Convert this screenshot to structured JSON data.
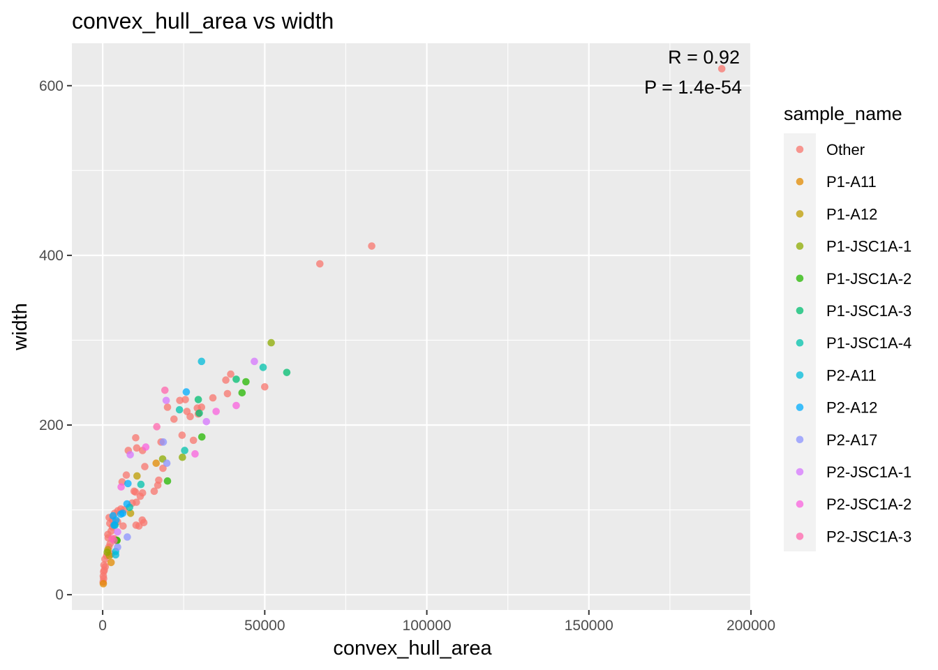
{
  "chart_data": {
    "type": "scatter",
    "title": "convex_hull_area vs width",
    "xlabel": "convex_hull_area",
    "ylabel": "width",
    "xlim": [
      -9500,
      200000
    ],
    "ylim": [
      -18,
      650
    ],
    "x_ticks": [
      0,
      50000,
      100000,
      150000,
      200000
    ],
    "x_tick_labels": [
      "0",
      "50000",
      "100000",
      "150000",
      "200000"
    ],
    "y_ticks": [
      0,
      200,
      400,
      600
    ],
    "y_tick_labels": [
      "0",
      "200",
      "400",
      "600"
    ],
    "grid": true,
    "legend": {
      "title": "sample_name",
      "position": "right"
    },
    "annotations": [
      "R = 0.92",
      "P = 1.4e-54"
    ],
    "series": [
      {
        "name": "Other",
        "color": "#F8766D",
        "points": [
          [
            191000,
            620
          ],
          [
            83000,
            411
          ],
          [
            67000,
            390
          ],
          [
            39500,
            260
          ],
          [
            38000,
            253
          ],
          [
            50000,
            245
          ],
          [
            38500,
            237
          ],
          [
            34000,
            232
          ],
          [
            25500,
            230
          ],
          [
            23800,
            229
          ],
          [
            20000,
            221
          ],
          [
            30500,
            221
          ],
          [
            29200,
            220
          ],
          [
            26000,
            216
          ],
          [
            29500,
            213
          ],
          [
            27000,
            210
          ],
          [
            22000,
            207
          ],
          [
            24500,
            188
          ],
          [
            10200,
            185
          ],
          [
            28000,
            182
          ],
          [
            18000,
            180
          ],
          [
            7900,
            170
          ],
          [
            12300,
            170
          ],
          [
            10500,
            173
          ],
          [
            13000,
            151
          ],
          [
            18600,
            149
          ],
          [
            7300,
            141
          ],
          [
            17300,
            135
          ],
          [
            17000,
            129
          ],
          [
            6000,
            133
          ],
          [
            12300,
            120
          ],
          [
            15900,
            122
          ],
          [
            9700,
            122
          ],
          [
            10100,
            121
          ],
          [
            11600,
            116
          ],
          [
            10400,
            109
          ],
          [
            9100,
            108
          ],
          [
            5600,
            101
          ],
          [
            6600,
            100
          ],
          [
            4700,
            99
          ],
          [
            3700,
            96
          ],
          [
            2000,
            91
          ],
          [
            3000,
            88
          ],
          [
            11200,
            81
          ],
          [
            12700,
            85
          ],
          [
            10300,
            82
          ],
          [
            12200,
            88
          ],
          [
            4600,
            86
          ],
          [
            6300,
            81
          ],
          [
            2200,
            84
          ],
          [
            3000,
            80
          ],
          [
            2600,
            75
          ],
          [
            1600,
            71
          ],
          [
            1700,
            67
          ],
          [
            3600,
            66
          ],
          [
            2300,
            60
          ],
          [
            1900,
            56
          ],
          [
            2600,
            48
          ],
          [
            1200,
            46
          ],
          [
            700,
            42
          ],
          [
            400,
            35
          ],
          [
            800,
            33
          ],
          [
            500,
            29
          ],
          [
            300,
            27
          ],
          [
            200,
            22
          ],
          [
            300,
            19
          ],
          [
            150,
            15
          ]
        ]
      },
      {
        "name": "P1-A11",
        "color": "#E18A00",
        "points": [
          [
            16500,
            155
          ],
          [
            2600,
            38
          ],
          [
            200,
            13
          ]
        ]
      },
      {
        "name": "P1-A12",
        "color": "#BE9C00",
        "points": [
          [
            10600,
            140
          ],
          [
            8600,
            96
          ],
          [
            1600,
            53
          ],
          [
            2100,
            46
          ]
        ]
      },
      {
        "name": "P1-JSC1A-1",
        "color": "#8CAB00",
        "points": [
          [
            52000,
            297
          ],
          [
            18500,
            160
          ],
          [
            24600,
            162
          ],
          [
            1400,
            50
          ],
          [
            4400,
            64
          ]
        ]
      },
      {
        "name": "P1-JSC1A-2",
        "color": "#24B700",
        "points": [
          [
            44200,
            251
          ],
          [
            43000,
            238
          ],
          [
            30600,
            186
          ],
          [
            20000,
            134
          ],
          [
            4400,
            64
          ]
        ]
      },
      {
        "name": "P1-JSC1A-3",
        "color": "#00BE70",
        "points": [
          [
            56800,
            262
          ],
          [
            41200,
            254
          ],
          [
            29500,
            230
          ],
          [
            29800,
            214
          ]
        ]
      },
      {
        "name": "P1-JSC1A-4",
        "color": "#00C1AB",
        "points": [
          [
            49500,
            268
          ],
          [
            23700,
            218
          ],
          [
            25300,
            170
          ],
          [
            11800,
            130
          ],
          [
            8300,
            103
          ],
          [
            3800,
            82
          ]
        ]
      },
      {
        "name": "P2-A11",
        "color": "#00BBDA",
        "points": [
          [
            30500,
            275
          ],
          [
            4000,
            51
          ],
          [
            4000,
            47
          ]
        ]
      },
      {
        "name": "P2-A12",
        "color": "#00ACFC",
        "points": [
          [
            25800,
            239
          ],
          [
            7800,
            131
          ],
          [
            7500,
            107
          ],
          [
            3200,
            93
          ],
          [
            6200,
            96
          ],
          [
            5600,
            95
          ],
          [
            4100,
            88
          ],
          [
            3500,
            82
          ]
        ]
      },
      {
        "name": "P2-A17",
        "color": "#8B93FF",
        "points": [
          [
            18700,
            180
          ],
          [
            19800,
            155
          ],
          [
            7600,
            68
          ],
          [
            4600,
            56
          ]
        ]
      },
      {
        "name": "P2-JSC1A-1",
        "color": "#D575FE",
        "points": [
          [
            46800,
            275
          ],
          [
            19600,
            229
          ],
          [
            32000,
            204
          ],
          [
            8500,
            165
          ],
          [
            4600,
            74
          ]
        ]
      },
      {
        "name": "P2-JSC1A-2",
        "color": "#F962DD",
        "points": [
          [
            35000,
            216
          ],
          [
            41200,
            223
          ],
          [
            28500,
            166
          ],
          [
            13300,
            174
          ],
          [
            5700,
            127
          ]
        ]
      },
      {
        "name": "P2-JSC1A-3",
        "color": "#FF65AC",
        "points": [
          [
            19200,
            241
          ],
          [
            16700,
            198
          ],
          [
            2900,
            66
          ],
          [
            3500,
            64
          ]
        ]
      }
    ]
  }
}
